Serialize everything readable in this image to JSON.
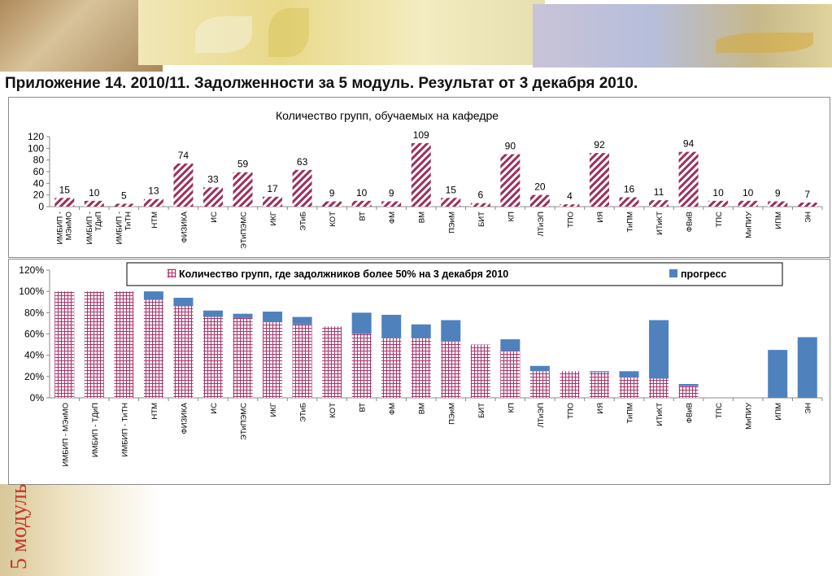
{
  "page": {
    "title": "Приложение  14. 2010/11. Задолженности за 5 модуль. Результат от 3 декабря 2010.",
    "side_label": "5 модуль"
  },
  "colors": {
    "hatch": "#9c2e5c",
    "grid_pink": "#a8326a",
    "progress": "#4f81bd",
    "side_label": "#c0392b"
  },
  "chart_data": [
    {
      "type": "bar",
      "title": "Количество групп, обучаемых на кафедре",
      "ylim": [
        0,
        120
      ],
      "yticks": [
        0,
        20,
        40,
        60,
        80,
        100,
        120
      ],
      "grid": false,
      "categories": [
        "ИМБИП - МЭиМО",
        "ИМБИП - ТДиП",
        "ИМБИП - ТиТН",
        "НТМ",
        "ФИЗИКА",
        "ИС",
        "ЭТиПЭМС",
        "ИКГ",
        "ЭТиБ",
        "КОТ",
        "ВТ",
        "ФМ",
        "ВМ",
        "ПЭиМ",
        "БИТ",
        "КП",
        "ЛТиЭП",
        "ТПО",
        "ИЯ",
        "ТиПМ",
        "ИТиКТ",
        "ФВиВ",
        "ТПС",
        "МиПИУ",
        "ИПМ",
        "ЭН"
      ],
      "series": [
        {
          "values": [
            15,
            10,
            5,
            13,
            74,
            33,
            59,
            17,
            63,
            9,
            10,
            9,
            109,
            15,
            6,
            90,
            20,
            4,
            92,
            16,
            11,
            94,
            10,
            10,
            9,
            7
          ]
        }
      ]
    },
    {
      "type": "bar",
      "stacked": true,
      "ylim": [
        0,
        120
      ],
      "yticks": [
        "0%",
        "20%",
        "40%",
        "60%",
        "80%",
        "100%",
        "120%"
      ],
      "grid": false,
      "legend_position": "top",
      "categories": [
        "ИМБИП - МЭиМО",
        "ИМБИП - ТДиП",
        "ИМБИП - ТиТН",
        "НТМ",
        "ФИЗИКА",
        "ИС",
        "ЭТиПЭМС",
        "ИКГ",
        "ЭТиБ",
        "КОТ",
        "ВТ",
        "ФМ",
        "ВМ",
        "ПЭиМ",
        "БИТ",
        "КП",
        "ЛТиЭП",
        "ТПО",
        "ИЯ",
        "ТиПМ",
        "ИТиКТ",
        "ФВиВ",
        "ТПС",
        "МиПИУ",
        "ИПМ",
        "ЭН"
      ],
      "series": [
        {
          "name": "Количество групп, где задолжников более  50% на 3 декабря 2010",
          "values": [
            100,
            100,
            100,
            92,
            86,
            76,
            75,
            71,
            69,
            67,
            60,
            56,
            56,
            53,
            50,
            44,
            25,
            25,
            24,
            19,
            18,
            11,
            0,
            0,
            0,
            0
          ]
        },
        {
          "name": "прогресс",
          "values": [
            0,
            0,
            0,
            8,
            8,
            6,
            4,
            10,
            7,
            0,
            20,
            22,
            13,
            20,
            0,
            11,
            5,
            0,
            1,
            6,
            55,
            2,
            0,
            0,
            45,
            57
          ]
        }
      ]
    }
  ]
}
